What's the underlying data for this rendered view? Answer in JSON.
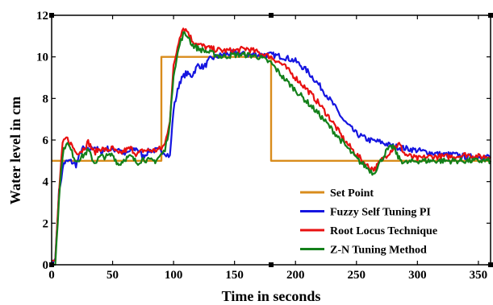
{
  "chart_data": {
    "type": "line",
    "title": "",
    "xlabel": "Time in seconds",
    "ylabel": "Water level in cm",
    "xlim": [
      0,
      360
    ],
    "ylim": [
      0,
      12
    ],
    "xticks": [
      0,
      50,
      100,
      150,
      200,
      250,
      300,
      350
    ],
    "yticks": [
      0,
      2,
      4,
      6,
      8,
      10,
      12
    ],
    "grid": false,
    "legend_position": "bottom-right",
    "series": [
      {
        "name": "Set Point",
        "color": "#d98c1c",
        "x": [
          0,
          90,
          90,
          180,
          180,
          360
        ],
        "y": [
          5,
          5,
          10,
          10,
          5,
          5
        ]
      },
      {
        "name": "Fuzzy Self Tuning PI",
        "color": "#1515e0",
        "x": [
          0,
          3,
          6,
          10,
          15,
          20,
          25,
          30,
          35,
          40,
          45,
          50,
          55,
          60,
          65,
          70,
          75,
          80,
          85,
          90,
          93,
          97,
          100,
          105,
          110,
          115,
          120,
          125,
          130,
          140,
          150,
          160,
          170,
          180,
          190,
          200,
          210,
          220,
          230,
          240,
          250,
          260,
          270,
          280,
          290,
          300,
          310,
          320,
          330,
          340,
          350,
          360
        ],
        "y": [
          0,
          0.3,
          3.5,
          4.9,
          5.0,
          4.8,
          5.6,
          5.5,
          5.7,
          5.4,
          5.6,
          5.5,
          5.6,
          5.3,
          5.5,
          5.6,
          5.2,
          5.5,
          5.5,
          5.5,
          5.4,
          5.2,
          7.5,
          8.8,
          9.2,
          9.1,
          9.6,
          9.5,
          9.9,
          10.1,
          10.2,
          10.1,
          10.1,
          10.1,
          10.0,
          9.8,
          9.3,
          8.6,
          7.8,
          6.9,
          6.3,
          6.0,
          5.9,
          5.7,
          5.6,
          5.5,
          5.4,
          5.3,
          5.3,
          5.2,
          5.2,
          5.2
        ]
      },
      {
        "name": "Root Locus Technique",
        "color": "#e81010",
        "x": [
          0,
          3,
          6,
          9,
          12,
          15,
          20,
          25,
          30,
          35,
          40,
          45,
          50,
          55,
          60,
          65,
          70,
          75,
          80,
          85,
          90,
          93,
          97,
          100,
          105,
          108,
          112,
          115,
          120,
          130,
          140,
          150,
          160,
          170,
          180,
          190,
          200,
          210,
          220,
          230,
          240,
          250,
          260,
          265,
          270,
          280,
          285,
          290,
          300,
          310,
          320,
          330,
          340,
          350,
          360
        ],
        "y": [
          0.2,
          0.2,
          3.5,
          5.8,
          6.1,
          5.9,
          5.4,
          5.5,
          5.9,
          5.4,
          5.6,
          5.5,
          5.6,
          5.3,
          5.5,
          5.6,
          5.3,
          5.5,
          5.5,
          5.5,
          5.6,
          5.8,
          7.0,
          9.5,
          11.0,
          11.4,
          11.2,
          10.8,
          10.6,
          10.4,
          10.3,
          10.3,
          10.4,
          10.2,
          10.0,
          9.6,
          9.0,
          8.4,
          7.7,
          6.9,
          6.0,
          5.3,
          4.7,
          4.6,
          5.0,
          5.6,
          5.8,
          5.3,
          5.1,
          5.2,
          5.2,
          5.2,
          5.3,
          5.2,
          5.2
        ]
      },
      {
        "name": "Z-N Tuning Method",
        "color": "#13801a",
        "x": [
          0,
          3,
          6,
          9,
          12,
          15,
          20,
          25,
          30,
          35,
          40,
          45,
          50,
          55,
          60,
          65,
          70,
          75,
          80,
          85,
          90,
          93,
          97,
          100,
          105,
          108,
          112,
          115,
          120,
          130,
          140,
          150,
          160,
          170,
          180,
          190,
          200,
          210,
          220,
          230,
          240,
          250,
          260,
          264,
          268,
          275,
          280,
          285,
          290,
          300,
          310,
          320,
          330,
          340,
          350,
          360
        ],
        "y": [
          0,
          0,
          3.2,
          5.3,
          5.9,
          5.6,
          5.0,
          5.2,
          5.5,
          4.9,
          5.2,
          5.2,
          5.3,
          4.8,
          5.1,
          5.2,
          4.9,
          5.1,
          5.0,
          5.0,
          5.3,
          5.5,
          6.8,
          9.2,
          10.6,
          11.1,
          11.0,
          10.6,
          10.4,
          10.2,
          10.0,
          10.1,
          10.1,
          10.0,
          9.7,
          9.0,
          8.4,
          7.8,
          7.2,
          6.5,
          5.8,
          5.1,
          4.6,
          4.4,
          4.8,
          5.5,
          5.7,
          5.1,
          4.9,
          5.0,
          5.0,
          5.0,
          5.0,
          5.0,
          5.0,
          5.0
        ]
      }
    ]
  }
}
